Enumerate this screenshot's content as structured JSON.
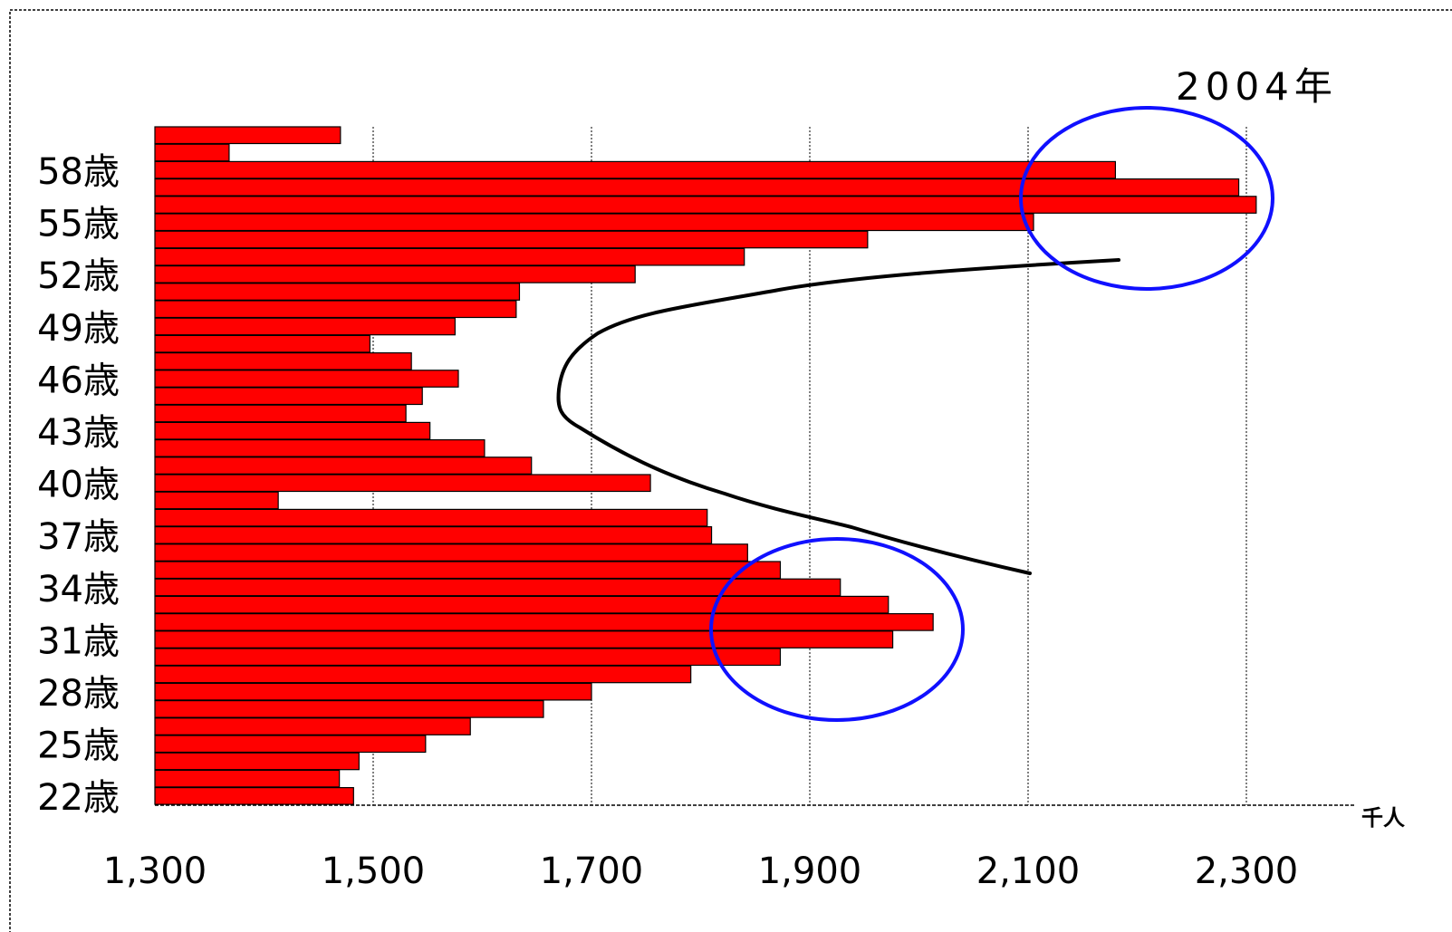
{
  "chart_data": {
    "type": "bar",
    "orientation": "horizontal",
    "title": "2004年",
    "unit": "千人",
    "xlim": [
      1300,
      2400
    ],
    "x_ticks": [
      "1,300",
      "1,500",
      "1,700",
      "1,900",
      "2,100",
      "2,300"
    ],
    "x_tick_values": [
      1300,
      1500,
      1700,
      1900,
      2100,
      2300
    ],
    "y_tick_labels": [
      {
        "age": 58,
        "label": "58歳"
      },
      {
        "age": 55,
        "label": "55歳"
      },
      {
        "age": 52,
        "label": "52歳"
      },
      {
        "age": 49,
        "label": "49歳"
      },
      {
        "age": 46,
        "label": "46歳"
      },
      {
        "age": 43,
        "label": "43歳"
      },
      {
        "age": 40,
        "label": "40歳"
      },
      {
        "age": 37,
        "label": "37歳"
      },
      {
        "age": 34,
        "label": "34歳"
      },
      {
        "age": 31,
        "label": "31歳"
      },
      {
        "age": 28,
        "label": "28歳"
      },
      {
        "age": 25,
        "label": "25歳"
      },
      {
        "age": 22,
        "label": "22歳"
      }
    ],
    "ages": [
      60,
      59,
      58,
      57,
      56,
      55,
      54,
      53,
      52,
      51,
      50,
      49,
      48,
      47,
      46,
      45,
      44,
      43,
      42,
      41,
      40,
      39,
      38,
      37,
      36,
      35,
      34,
      33,
      32,
      31,
      30,
      29,
      28,
      27,
      26,
      25,
      24,
      23,
      22
    ],
    "values": [
      1470,
      1368,
      2180,
      2293,
      2309,
      2105,
      1953,
      1840,
      1740,
      1634,
      1631,
      1575,
      1497,
      1535,
      1578,
      1545,
      1530,
      1552,
      1602,
      1645,
      1754,
      1413,
      1806,
      1810,
      1843,
      1873,
      1928,
      1972,
      2013,
      1976,
      1873,
      1791,
      1700,
      1656,
      1589,
      1548,
      1487,
      1469,
      1482
    ],
    "bar_color": "#ff0000",
    "grid": "vertical",
    "annotations": {
      "curve": "black arc",
      "highlight_circles": "blue ellipses around ages 55-59 and 29-33"
    }
  }
}
